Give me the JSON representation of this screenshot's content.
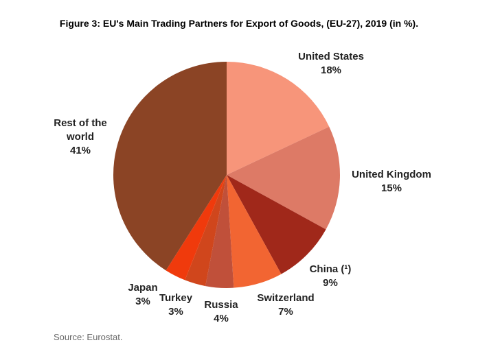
{
  "chart_data": {
    "type": "pie",
    "title": "Figure 3: EU's Main Trading Partners for Export of Goods, (EU-27), 2019 (in %).",
    "categories": [
      "United States",
      "United Kingdom",
      "China (¹)",
      "Switzerland",
      "Russia",
      "Turkey",
      "Japan",
      "Rest of the world"
    ],
    "values": [
      18,
      15,
      9,
      7,
      4,
      3,
      3,
      41
    ],
    "value_labels": [
      "18%",
      "15%",
      "9%",
      "7%",
      "4%",
      "3%",
      "3%",
      "41%"
    ],
    "colors": [
      "#f7957a",
      "#dd7a66",
      "#a0281a",
      "#f26532",
      "#c0503a",
      "#d0461c",
      "#f03a0c",
      "#8b4425"
    ],
    "source": "Source: Eurostat."
  }
}
